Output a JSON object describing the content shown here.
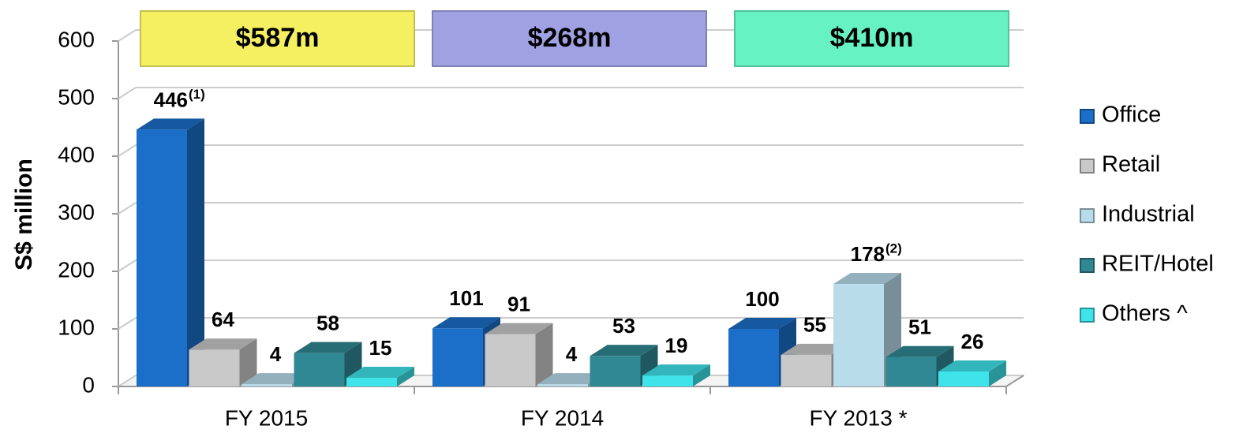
{
  "chart_data": {
    "type": "bar3d",
    "y_label": "S$ million",
    "categories": [
      "FY 2015",
      "FY 2014",
      "FY 2013 *"
    ],
    "series": [
      {
        "name": "Office",
        "color": "#1b6fc8",
        "values": [
          446,
          101,
          100
        ]
      },
      {
        "name": "Retail",
        "color": "#c9c9c9",
        "values": [
          64,
          91,
          55
        ]
      },
      {
        "name": "Industrial",
        "color": "#b9dceb",
        "values": [
          4,
          4,
          178
        ]
      },
      {
        "name": "REIT/Hotel",
        "color": "#2f8893",
        "values": [
          58,
          53,
          51
        ]
      },
      {
        "name": "Others ^",
        "color": "#3fe3ea",
        "values": [
          15,
          19,
          26
        ]
      }
    ],
    "annotations": [
      {
        "text": "(1)",
        "series": "Office",
        "category": "FY 2015"
      },
      {
        "text": "(2)",
        "series": "Industrial",
        "category": "FY 2013 *"
      }
    ],
    "totals": {
      "values": [
        587,
        268,
        410
      ],
      "value_labels": [
        "$587m",
        "$268m",
        "$410m"
      ],
      "colors": [
        "#f4f062",
        "#9fa1e2",
        "#66f2c2"
      ]
    },
    "ylim": [
      0,
      600
    ],
    "yticks": [
      0,
      100,
      200,
      300,
      400,
      500,
      600
    ],
    "grid": true,
    "legend": "right"
  }
}
